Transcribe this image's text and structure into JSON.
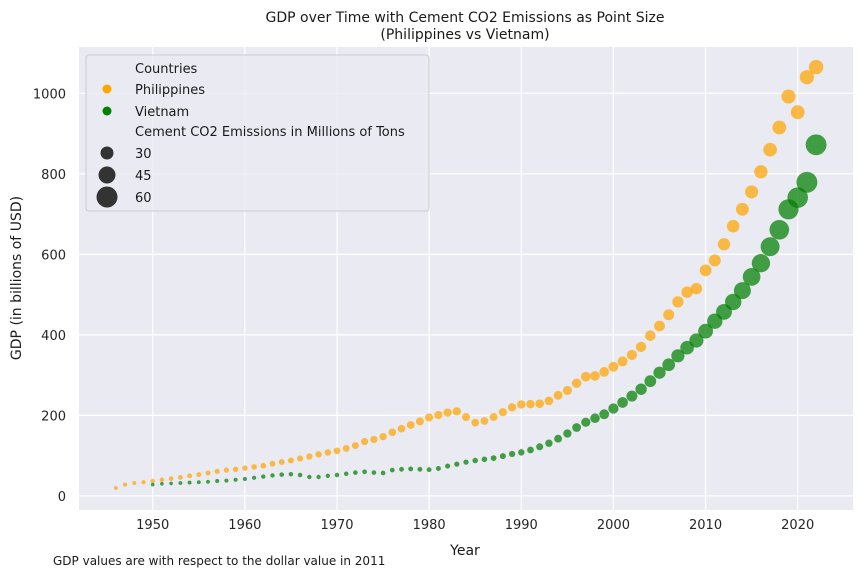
{
  "chart_data": {
    "type": "scatter",
    "title": "GDP over Time with Cement CO2 Emissions as Point Size",
    "subtitle": "(Philippines vs Vietnam)",
    "xlabel": "Year",
    "ylabel": "GDP (in billions of USD)",
    "footnote": "GDP values are with respect to the dollar value in 2011",
    "xlim": [
      1942,
      2026
    ],
    "ylim": [
      -35,
      1115
    ],
    "xticks": [
      1950,
      1960,
      1970,
      1980,
      1990,
      2000,
      2010,
      2020
    ],
    "yticks": [
      0,
      200,
      400,
      600,
      800,
      1000
    ],
    "grid": true,
    "legend": {
      "placement": "top-left",
      "hue_title": "Countries",
      "size_title": "Cement CO2 Emissions in Millions of Tons",
      "size_entries": [
        30,
        45,
        60
      ]
    },
    "series": [
      {
        "name": "Philippines",
        "color": "#ffa500",
        "points": [
          [
            1946,
            20,
            0.3
          ],
          [
            1947,
            28,
            0.4
          ],
          [
            1948,
            32,
            0.4
          ],
          [
            1949,
            34,
            0.5
          ],
          [
            1950,
            37,
            0.6
          ],
          [
            1951,
            40,
            0.7
          ],
          [
            1952,
            43,
            0.8
          ],
          [
            1953,
            46,
            0.9
          ],
          [
            1954,
            50,
            1.0
          ],
          [
            1955,
            53,
            1.1
          ],
          [
            1956,
            57,
            1.2
          ],
          [
            1957,
            61,
            1.3
          ],
          [
            1958,
            64,
            1.4
          ],
          [
            1959,
            66,
            1.5
          ],
          [
            1960,
            69,
            1.6
          ],
          [
            1961,
            72,
            1.7
          ],
          [
            1962,
            75,
            1.8
          ],
          [
            1963,
            80,
            1.9
          ],
          [
            1964,
            84,
            2.0
          ],
          [
            1965,
            88,
            2.2
          ],
          [
            1966,
            93,
            2.4
          ],
          [
            1967,
            98,
            2.6
          ],
          [
            1968,
            103,
            2.8
          ],
          [
            1969,
            108,
            3.0
          ],
          [
            1970,
            112,
            3.2
          ],
          [
            1971,
            118,
            3.4
          ],
          [
            1972,
            125,
            3.6
          ],
          [
            1973,
            135,
            3.9
          ],
          [
            1974,
            140,
            4.1
          ],
          [
            1975,
            147,
            4.3
          ],
          [
            1976,
            158,
            4.6
          ],
          [
            1977,
            167,
            4.9
          ],
          [
            1978,
            176,
            5.2
          ],
          [
            1979,
            185,
            5.5
          ],
          [
            1980,
            195,
            5.8
          ],
          [
            1981,
            201,
            6.0
          ],
          [
            1982,
            207,
            6.2
          ],
          [
            1983,
            210,
            6.3
          ],
          [
            1984,
            196,
            5.6
          ],
          [
            1985,
            182,
            5.0
          ],
          [
            1986,
            186,
            5.1
          ],
          [
            1987,
            196,
            5.4
          ],
          [
            1988,
            208,
            5.8
          ],
          [
            1989,
            220,
            6.3
          ],
          [
            1990,
            227,
            6.6
          ],
          [
            1991,
            228,
            6.6
          ],
          [
            1992,
            229,
            6.7
          ],
          [
            1993,
            236,
            7.0
          ],
          [
            1994,
            250,
            7.5
          ],
          [
            1995,
            262,
            8.0
          ],
          [
            1996,
            280,
            8.8
          ],
          [
            1997,
            296,
            9.5
          ],
          [
            1998,
            298,
            9.4
          ],
          [
            1999,
            308,
            9.6
          ],
          [
            2000,
            321,
            10.0
          ],
          [
            2001,
            334,
            10.4
          ],
          [
            2002,
            350,
            10.8
          ],
          [
            2003,
            370,
            11.3
          ],
          [
            2004,
            398,
            12.0
          ],
          [
            2005,
            422,
            12.6
          ],
          [
            2006,
            450,
            13.3
          ],
          [
            2007,
            482,
            14.1
          ],
          [
            2008,
            506,
            14.6
          ],
          [
            2009,
            515,
            14.9
          ],
          [
            2010,
            560,
            16.0
          ],
          [
            2011,
            585,
            16.7
          ],
          [
            2012,
            625,
            17.7
          ],
          [
            2013,
            670,
            18.8
          ],
          [
            2014,
            712,
            19.8
          ],
          [
            2015,
            755,
            20.8
          ],
          [
            2016,
            805,
            21.9
          ],
          [
            2017,
            860,
            23.0
          ],
          [
            2018,
            915,
            24.0
          ],
          [
            2019,
            992,
            25.1
          ],
          [
            2020,
            953,
            23.8
          ],
          [
            2021,
            1040,
            25.6
          ],
          [
            2022,
            1065,
            26.3
          ]
        ]
      },
      {
        "name": "Vietnam",
        "color": "#008000",
        "points": [
          [
            1950,
            28,
            0.2
          ],
          [
            1951,
            30,
            0.2
          ],
          [
            1952,
            31,
            0.2
          ],
          [
            1953,
            32,
            0.3
          ],
          [
            1954,
            33,
            0.3
          ],
          [
            1955,
            34,
            0.3
          ],
          [
            1956,
            35,
            0.3
          ],
          [
            1957,
            37,
            0.4
          ],
          [
            1958,
            38,
            0.4
          ],
          [
            1959,
            40,
            0.4
          ],
          [
            1960,
            42,
            0.5
          ],
          [
            1961,
            45,
            0.5
          ],
          [
            1962,
            48,
            0.6
          ],
          [
            1963,
            51,
            0.6
          ],
          [
            1964,
            53,
            0.7
          ],
          [
            1965,
            54,
            0.7
          ],
          [
            1966,
            52,
            0.7
          ],
          [
            1967,
            47,
            0.6
          ],
          [
            1968,
            47,
            0.6
          ],
          [
            1969,
            50,
            0.6
          ],
          [
            1970,
            52,
            0.7
          ],
          [
            1971,
            55,
            0.7
          ],
          [
            1972,
            58,
            0.8
          ],
          [
            1973,
            60,
            0.8
          ],
          [
            1974,
            58,
            0.8
          ],
          [
            1975,
            57,
            0.8
          ],
          [
            1976,
            64,
            0.9
          ],
          [
            1977,
            66,
            0.9
          ],
          [
            1978,
            67,
            1.0
          ],
          [
            1979,
            66,
            1.0
          ],
          [
            1980,
            65,
            1.0
          ],
          [
            1981,
            68,
            1.1
          ],
          [
            1982,
            74,
            1.2
          ],
          [
            1983,
            79,
            1.3
          ],
          [
            1984,
            84,
            1.4
          ],
          [
            1985,
            88,
            1.6
          ],
          [
            1986,
            91,
            1.7
          ],
          [
            1987,
            94,
            1.9
          ],
          [
            1988,
            99,
            2.2
          ],
          [
            1989,
            104,
            2.5
          ],
          [
            1990,
            108,
            2.8
          ],
          [
            1991,
            114,
            3.2
          ],
          [
            1992,
            122,
            3.8
          ],
          [
            1993,
            131,
            4.4
          ],
          [
            1994,
            142,
            5.2
          ],
          [
            1995,
            155,
            6.2
          ],
          [
            1996,
            170,
            7.3
          ],
          [
            1997,
            183,
            8.3
          ],
          [
            1998,
            193,
            9.2
          ],
          [
            1999,
            203,
            10.0
          ],
          [
            2000,
            217,
            11.1
          ],
          [
            2001,
            232,
            12.2
          ],
          [
            2002,
            248,
            13.4
          ],
          [
            2003,
            265,
            14.7
          ],
          [
            2004,
            285,
            16.0
          ],
          [
            2005,
            306,
            17.6
          ],
          [
            2006,
            326,
            19.3
          ],
          [
            2007,
            348,
            21.2
          ],
          [
            2008,
            368,
            23.0
          ],
          [
            2009,
            386,
            25.3
          ],
          [
            2010,
            409,
            28.1
          ],
          [
            2011,
            434,
            30.5
          ],
          [
            2012,
            457,
            33.2
          ],
          [
            2013,
            482,
            36.0
          ],
          [
            2014,
            510,
            39.3
          ],
          [
            2015,
            544,
            43.0
          ],
          [
            2016,
            578,
            46.8
          ],
          [
            2017,
            619,
            50.6
          ],
          [
            2018,
            661,
            54.6
          ],
          [
            2019,
            712,
            58.6
          ],
          [
            2020,
            741,
            61.0
          ],
          [
            2021,
            779,
            63.5
          ],
          [
            2022,
            872,
            63.0
          ]
        ]
      }
    ]
  }
}
